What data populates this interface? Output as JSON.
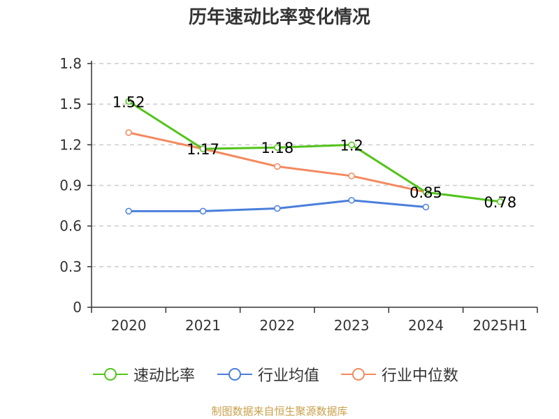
{
  "chart_data": {
    "type": "line",
    "title": "历年速动比率变化情况",
    "categories": [
      "2020",
      "2021",
      "2022",
      "2023",
      "2024",
      "2025H1"
    ],
    "y_ticks": [
      "0",
      "0.3",
      "0.6",
      "0.9",
      "1.2",
      "1.5",
      "1.8"
    ],
    "ylim": [
      0,
      1.8
    ],
    "grid": true,
    "legend_position": "bottom",
    "series": [
      {
        "name": "速动比率",
        "color": "#52c41a",
        "values": [
          1.52,
          1.17,
          1.18,
          1.2,
          0.85,
          0.78
        ],
        "labels": [
          "1.52",
          "1.17",
          "1.18",
          "1.2",
          "0.85",
          "0.78"
        ]
      },
      {
        "name": "行业均值",
        "color": "#4a7fdb",
        "values": [
          0.71,
          0.71,
          0.73,
          0.79,
          0.74,
          null
        ]
      },
      {
        "name": "行业中位数",
        "color": "#f4895f",
        "values": [
          1.29,
          1.17,
          1.04,
          0.97,
          0.85,
          null
        ]
      }
    ]
  },
  "source": "制图数据来自恒生聚源数据库"
}
